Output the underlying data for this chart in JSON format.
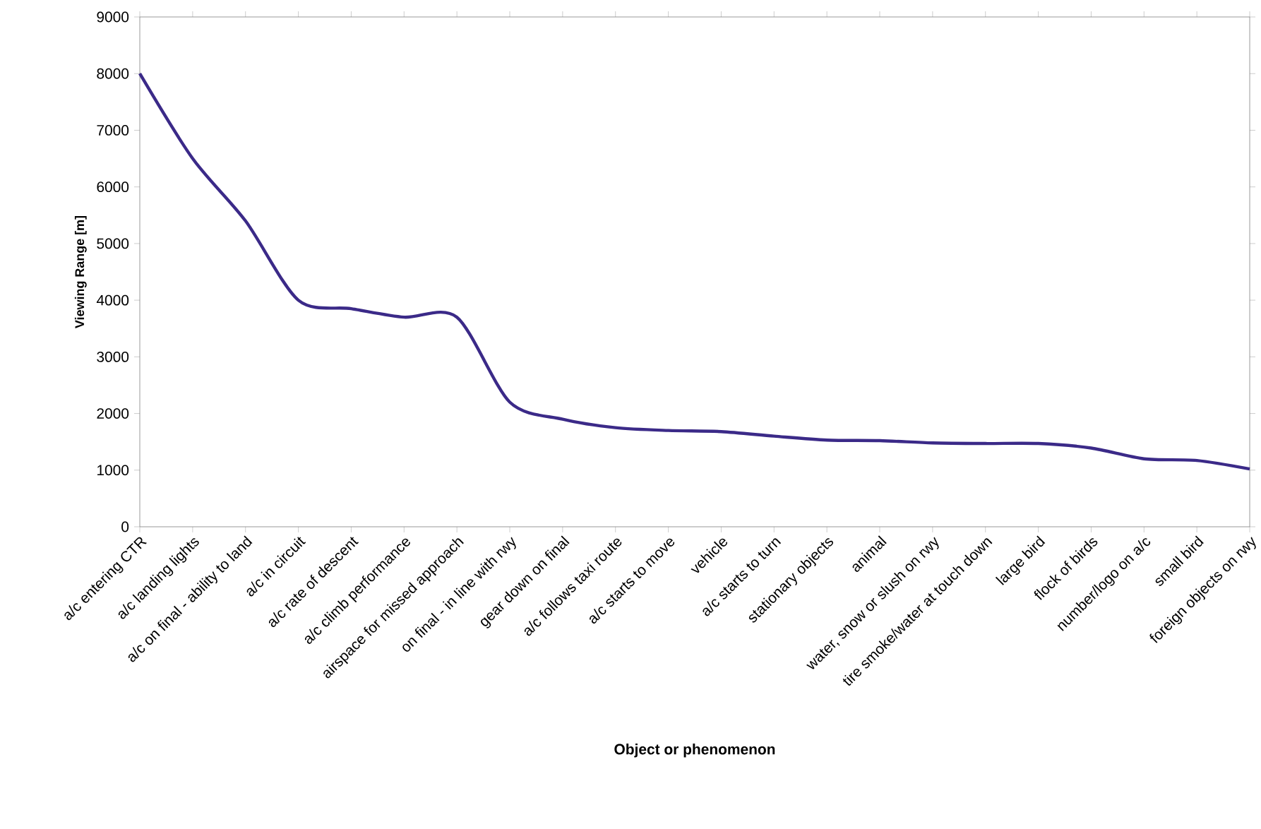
{
  "chart_data": {
    "type": "line",
    "xlabel": "Object or phenomenon",
    "ylabel": "Viewing Range [m]",
    "categories": [
      "a/c entering CTR",
      "a/c landing lights",
      "a/c on final - ability to land",
      "a/c in circuit",
      "a/c rate of descent",
      "a/c climb performance",
      "airspace for missed approach",
      "on final - in line with rwy",
      "gear down on final",
      "a/c follows taxi route",
      "a/c starts to move",
      "vehicle",
      "a/c starts to turn",
      "stationary objects",
      "animal",
      "water, snow or slush on rwy",
      "tire smoke/water at touch down",
      "large bird",
      "flock of birds",
      "number/logo on a/c",
      "small bird",
      "foreign objects on rwy"
    ],
    "series": [
      {
        "color": "#3b2a88",
        "values": [
          8000,
          6500,
          5400,
          4000,
          3850,
          3700,
          3700,
          2200,
          1900,
          1750,
          1700,
          1680,
          1600,
          1530,
          1520,
          1480,
          1470,
          1470,
          1390,
          1200,
          1170,
          1020
        ]
      }
    ],
    "ylim": [
      0,
      9000
    ],
    "yticks": [
      0,
      1000,
      2000,
      3000,
      4000,
      5000,
      6000,
      7000,
      8000,
      9000
    ],
    "marker": "none",
    "line_style": "solid"
  }
}
